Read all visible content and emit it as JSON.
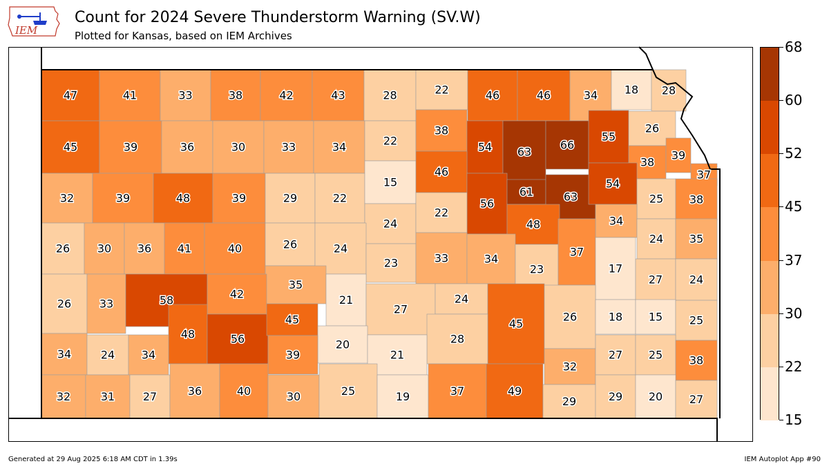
{
  "title": "Count for 2024 Severe Thunderstorm Warning (SV.W)",
  "subtitle": "Plotted for Kansas, based on IEM Archives",
  "logo_text": "IEM",
  "footer": {
    "generated": "Generated at 29 Aug 2025 6:18 AM CDT in 1.39s",
    "app": "IEM Autoplot App #90"
  },
  "colorbar": {
    "ticks": [
      "15",
      "22",
      "30",
      "37",
      "45",
      "52",
      "60",
      "68"
    ],
    "colors": [
      "#fee6ce",
      "#fdd0a2",
      "#fdae6b",
      "#fd8d3c",
      "#f16913",
      "#d94801",
      "#a63603"
    ]
  },
  "counties": [
    {
      "v": "47"
    },
    {
      "v": "41"
    },
    {
      "v": "33"
    },
    {
      "v": "38"
    },
    {
      "v": "42"
    },
    {
      "v": "43"
    },
    {
      "v": "28"
    },
    {
      "v": "22"
    },
    {
      "v": "46"
    },
    {
      "v": "46"
    },
    {
      "v": "34"
    },
    {
      "v": "18"
    },
    {
      "v": "28"
    },
    {
      "v": "45"
    },
    {
      "v": "39"
    },
    {
      "v": "36"
    },
    {
      "v": "30"
    },
    {
      "v": "33"
    },
    {
      "v": "34"
    },
    {
      "v": "22"
    },
    {
      "v": "38"
    },
    {
      "v": "54"
    },
    {
      "v": "63"
    },
    {
      "v": "66"
    },
    {
      "v": "55"
    },
    {
      "v": "26"
    },
    {
      "v": "38"
    },
    {
      "v": "39"
    },
    {
      "v": "37"
    },
    {
      "v": "32"
    },
    {
      "v": "39"
    },
    {
      "v": "48"
    },
    {
      "v": "39"
    },
    {
      "v": "29"
    },
    {
      "v": "22"
    },
    {
      "v": "15"
    },
    {
      "v": "46"
    },
    {
      "v": "56"
    },
    {
      "v": "61"
    },
    {
      "v": "63"
    },
    {
      "v": "54"
    },
    {
      "v": "25"
    },
    {
      "v": "38"
    },
    {
      "v": "24"
    },
    {
      "v": "22"
    },
    {
      "v": "48"
    },
    {
      "v": "34"
    },
    {
      "v": "26"
    },
    {
      "v": "30"
    },
    {
      "v": "36"
    },
    {
      "v": "41"
    },
    {
      "v": "40"
    },
    {
      "v": "26"
    },
    {
      "v": "24"
    },
    {
      "v": "23"
    },
    {
      "v": "33"
    },
    {
      "v": "34"
    },
    {
      "v": "23"
    },
    {
      "v": "37"
    },
    {
      "v": "24"
    },
    {
      "v": "35"
    },
    {
      "v": "35"
    },
    {
      "v": "17"
    },
    {
      "v": "27"
    },
    {
      "v": "24"
    },
    {
      "v": "26"
    },
    {
      "v": "33"
    },
    {
      "v": "58"
    },
    {
      "v": "42"
    },
    {
      "v": "21"
    },
    {
      "v": "27"
    },
    {
      "v": "24"
    },
    {
      "v": "45"
    },
    {
      "v": "26"
    },
    {
      "v": "18"
    },
    {
      "v": "15"
    },
    {
      "v": "25"
    },
    {
      "v": "48"
    },
    {
      "v": "56"
    },
    {
      "v": "45"
    },
    {
      "v": "20"
    },
    {
      "v": "28"
    },
    {
      "v": "34"
    },
    {
      "v": "24"
    },
    {
      "v": "34"
    },
    {
      "v": "39"
    },
    {
      "v": "21"
    },
    {
      "v": "32"
    },
    {
      "v": "27"
    },
    {
      "v": "25"
    },
    {
      "v": "38"
    },
    {
      "v": "32"
    },
    {
      "v": "31"
    },
    {
      "v": "27"
    },
    {
      "v": "36"
    },
    {
      "v": "40"
    },
    {
      "v": "30"
    },
    {
      "v": "25"
    },
    {
      "v": "19"
    },
    {
      "v": "37"
    },
    {
      "v": "49"
    },
    {
      "v": "29"
    },
    {
      "v": "29"
    },
    {
      "v": "20"
    },
    {
      "v": "27"
    }
  ]
}
